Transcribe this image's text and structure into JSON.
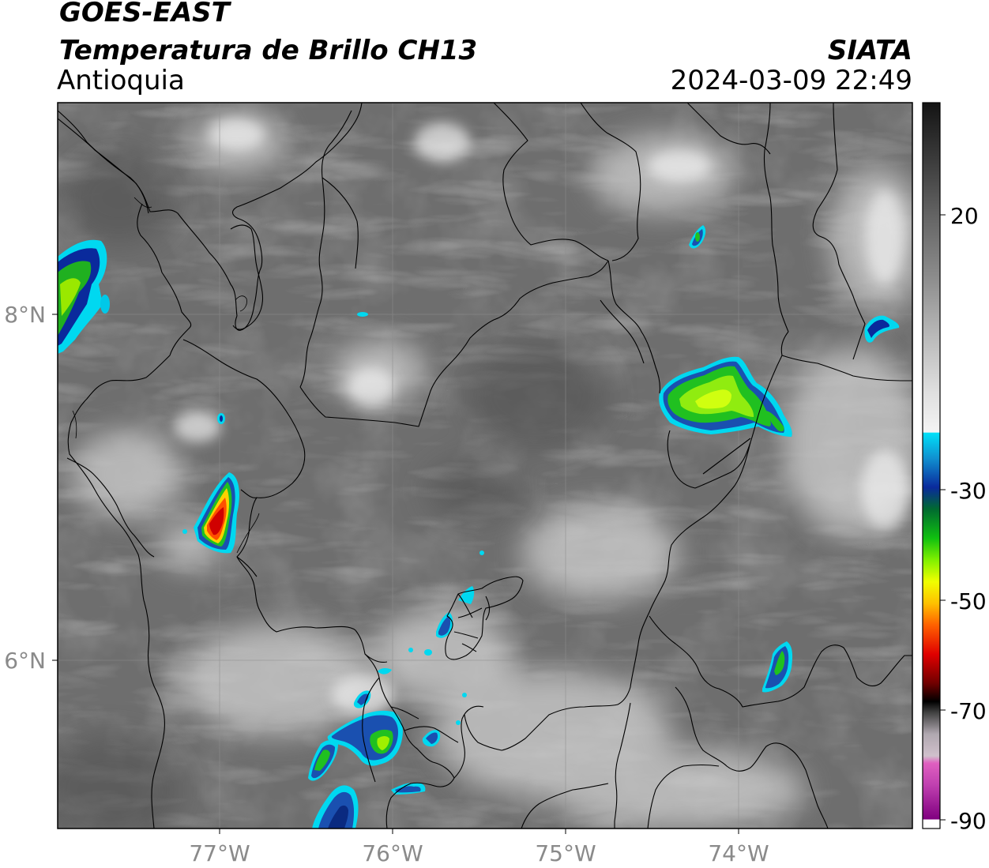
{
  "header": {
    "satellite": "GOES-EAST",
    "product": "Temperatura de Brillo CH13",
    "region": "Antioquia",
    "agency": "SIATA",
    "datetime": "2024-03-09 22:49"
  },
  "map": {
    "lon_ticks": [
      "77°W",
      "76°W",
      "75°W",
      "74°W"
    ],
    "lat_ticks": [
      "8°N",
      "6°N"
    ]
  },
  "colorbar": {
    "ticks": [
      "20",
      "-30",
      "-50",
      "-70",
      "-90"
    ],
    "colors": {
      "cyan": "#00d8f0",
      "blue": "#0a2a9c",
      "green": "#20c020",
      "lime": "#d0ff00",
      "yellow": "#ffd000",
      "orange": "#ff7000",
      "red": "#e00000",
      "dark_red": "#600000",
      "black": "#000000",
      "magenta": "#e040c0",
      "purple": "#800080"
    }
  }
}
